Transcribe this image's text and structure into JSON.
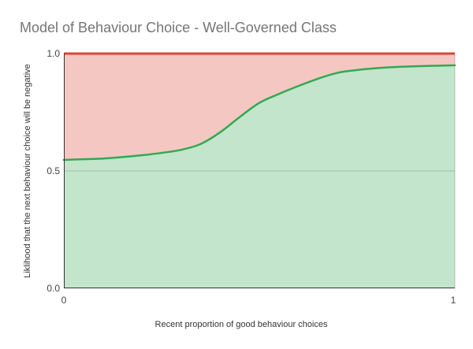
{
  "chart_data": {
    "type": "area",
    "title": "Model of Behaviour Choice - Well-Governed Class",
    "xlabel": "Recent proportion of good behaviour choices",
    "ylabel": "Liklihood that the next behaviour choice will be negative",
    "xlim": [
      0,
      1
    ],
    "ylim": [
      0.0,
      1.0
    ],
    "x_tick_labels": [
      "0",
      "1"
    ],
    "y_tick_labels": [
      "0.0",
      "0.5",
      "1.0"
    ],
    "gridlines": {
      "y": [
        0.5
      ],
      "x": [
        1
      ]
    },
    "legend": "none",
    "stacked": true,
    "curve": {
      "x": [
        0,
        0.05,
        0.1,
        0.15,
        0.2,
        0.25,
        0.3,
        0.35,
        0.4,
        0.45,
        0.5,
        0.55,
        0.6,
        0.65,
        0.7,
        0.75,
        0.8,
        0.85,
        0.9,
        0.95,
        1
      ],
      "y": [
        0.547,
        0.55,
        0.553,
        0.559,
        0.567,
        0.577,
        0.59,
        0.615,
        0.665,
        0.73,
        0.79,
        0.828,
        0.862,
        0.893,
        0.918,
        0.93,
        0.938,
        0.943,
        0.946,
        0.948,
        0.95
      ]
    },
    "top_line_y": 1.0,
    "colors": {
      "curve_line": "#34a853",
      "top_line": "#db4437",
      "fill_opacity": 0.3,
      "gridline": "#cccccc",
      "axis": "#333333",
      "title": "#757575",
      "tick_label": "#444444",
      "axis_label": "#333333"
    }
  }
}
